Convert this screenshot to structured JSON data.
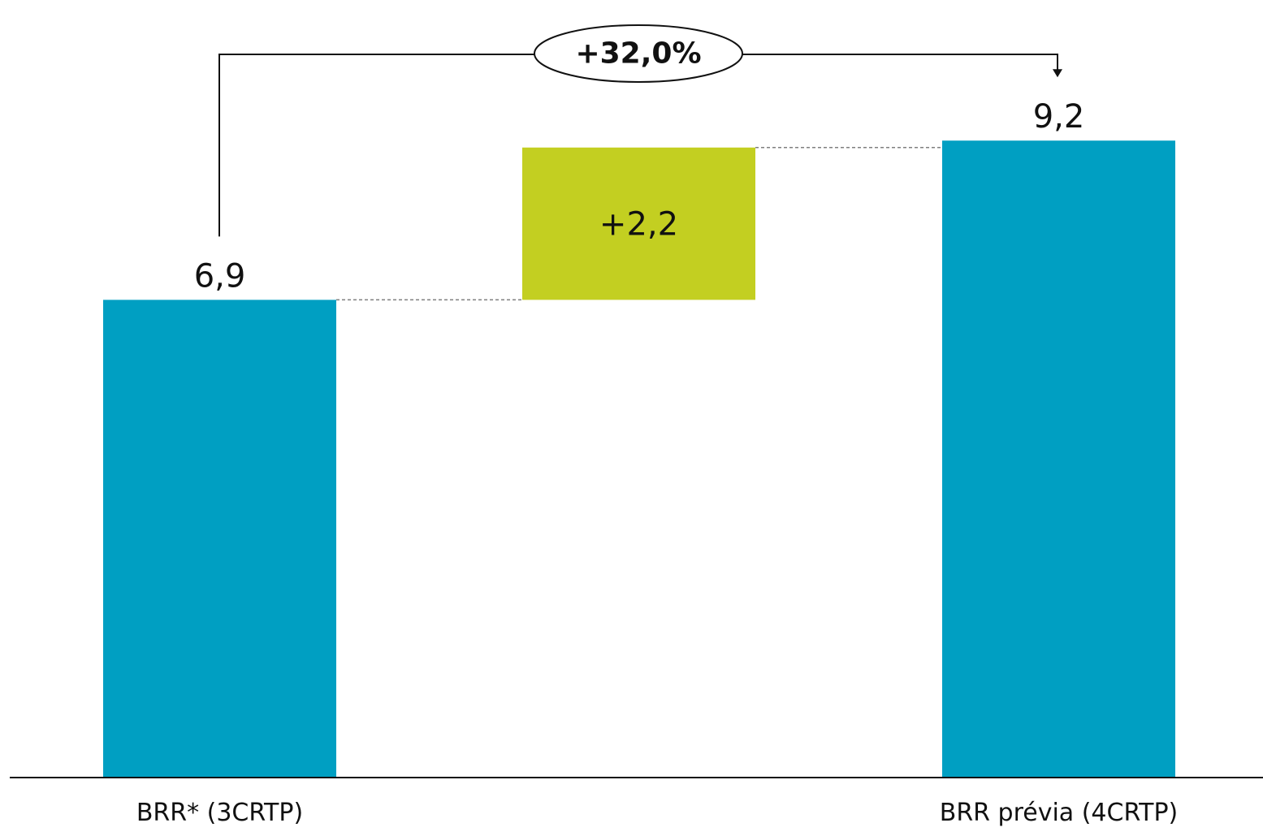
{
  "chart_data": {
    "type": "bar",
    "subtype": "waterfall",
    "categories": [
      "BRR* (3CRTP)",
      "",
      "BRR prévia (4CRTP)"
    ],
    "values": [
      6.9,
      2.2,
      9.2
    ],
    "value_labels": [
      "6,9",
      "+2,2",
      "9,2"
    ],
    "bar_roles": [
      "total",
      "increment",
      "total"
    ],
    "growth_label": "+32,0%",
    "grid": false,
    "legend": "none"
  },
  "colors": {
    "total_bar": "#009fc2",
    "increment_bar": "#c3cf21",
    "axis": "#111111",
    "connector": "#7f7f7f"
  }
}
